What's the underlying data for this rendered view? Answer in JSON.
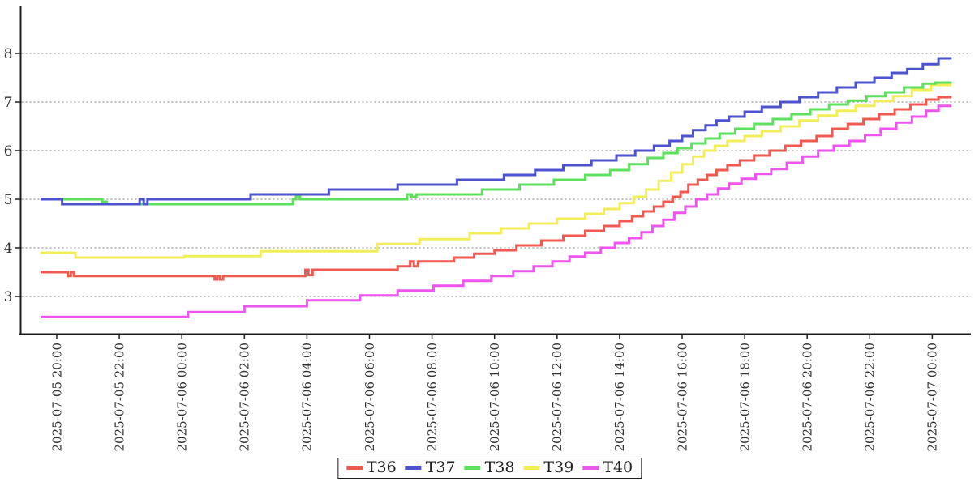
{
  "chart_data": {
    "type": "line",
    "subtype": "step-after",
    "title": "",
    "xlabel": "",
    "ylabel": "",
    "grid": "horizontal-dotted",
    "legend_position": "bottom-center",
    "x_axis": {
      "unit": "datetime, 2-hour ticks, labels rotated 90deg",
      "ticks": [
        {
          "t": 0,
          "label": "2025-07-05 20:00"
        },
        {
          "t": 2,
          "label": "2025-07-05 22:00"
        },
        {
          "t": 4,
          "label": "2025-07-06 00:00"
        },
        {
          "t": 6,
          "label": "2025-07-06 02:00"
        },
        {
          "t": 8,
          "label": "2025-07-06 04:00"
        },
        {
          "t": 10,
          "label": "2025-07-06 06:00"
        },
        {
          "t": 12,
          "label": "2025-07-06 08:00"
        },
        {
          "t": 14,
          "label": "2025-07-06 10:00"
        },
        {
          "t": 16,
          "label": "2025-07-06 12:00"
        },
        {
          "t": 18,
          "label": "2025-07-06 14:00"
        },
        {
          "t": 20,
          "label": "2025-07-06 16:00"
        },
        {
          "t": 22,
          "label": "2025-07-06 18:00"
        },
        {
          "t": 24,
          "label": "2025-07-06 20:00"
        },
        {
          "t": 26,
          "label": "2025-07-06 22:00"
        },
        {
          "t": 28,
          "label": "2025-07-07 00:00"
        }
      ]
    },
    "y_axis": {
      "ticks": [
        3,
        4,
        5,
        6,
        7,
        8
      ],
      "range": [
        2.2,
        8.95
      ]
    },
    "series_start_hour": -0.52,
    "series_end_hour": 28.62,
    "draw_order": [
      "T39",
      "T40",
      "T38",
      "T36",
      "T37"
    ],
    "series": [
      {
        "name": "T36",
        "color": "#f0594f",
        "points": [
          [
            -0.52,
            3.5
          ],
          [
            0.35,
            3.42
          ],
          [
            0.45,
            3.5
          ],
          [
            0.55,
            3.42
          ],
          [
            5.05,
            3.35
          ],
          [
            5.13,
            3.42
          ],
          [
            5.22,
            3.35
          ],
          [
            5.32,
            3.42
          ],
          [
            7.95,
            3.55
          ],
          [
            8.05,
            3.44
          ],
          [
            8.18,
            3.55
          ],
          [
            10.9,
            3.62
          ],
          [
            11.3,
            3.72
          ],
          [
            11.42,
            3.62
          ],
          [
            11.55,
            3.72
          ],
          [
            12.7,
            3.8
          ],
          [
            13.35,
            3.88
          ],
          [
            14.0,
            3.95
          ],
          [
            14.7,
            4.05
          ],
          [
            15.5,
            4.15
          ],
          [
            16.2,
            4.25
          ],
          [
            16.9,
            4.35
          ],
          [
            17.5,
            4.45
          ],
          [
            18.0,
            4.55
          ],
          [
            18.4,
            4.65
          ],
          [
            18.75,
            4.75
          ],
          [
            19.1,
            4.85
          ],
          [
            19.4,
            4.95
          ],
          [
            19.7,
            5.05
          ],
          [
            19.95,
            5.15
          ],
          [
            20.2,
            5.3
          ],
          [
            20.5,
            5.4
          ],
          [
            20.8,
            5.5
          ],
          [
            21.1,
            5.6
          ],
          [
            21.45,
            5.7
          ],
          [
            21.85,
            5.8
          ],
          [
            22.3,
            5.9
          ],
          [
            22.8,
            6.0
          ],
          [
            23.3,
            6.1
          ],
          [
            23.8,
            6.2
          ],
          [
            24.3,
            6.3
          ],
          [
            24.8,
            6.45
          ],
          [
            25.3,
            6.55
          ],
          [
            25.8,
            6.65
          ],
          [
            26.3,
            6.75
          ],
          [
            26.8,
            6.85
          ],
          [
            27.3,
            6.95
          ],
          [
            27.8,
            7.05
          ],
          [
            28.2,
            7.1
          ]
        ]
      },
      {
        "name": "T37",
        "color": "#4d53ce",
        "points": [
          [
            -0.52,
            5.0
          ],
          [
            0.17,
            4.9
          ],
          [
            2.65,
            5.0
          ],
          [
            2.78,
            4.9
          ],
          [
            2.9,
            5.0
          ],
          [
            6.2,
            5.1
          ],
          [
            8.7,
            5.2
          ],
          [
            10.9,
            5.3
          ],
          [
            12.8,
            5.4
          ],
          [
            14.3,
            5.5
          ],
          [
            15.3,
            5.6
          ],
          [
            16.2,
            5.7
          ],
          [
            17.1,
            5.8
          ],
          [
            17.9,
            5.9
          ],
          [
            18.5,
            6.0
          ],
          [
            19.1,
            6.1
          ],
          [
            19.6,
            6.2
          ],
          [
            20.0,
            6.3
          ],
          [
            20.35,
            6.42
          ],
          [
            20.75,
            6.52
          ],
          [
            21.1,
            6.62
          ],
          [
            21.5,
            6.7
          ],
          [
            22.0,
            6.8
          ],
          [
            22.55,
            6.9
          ],
          [
            23.15,
            7.0
          ],
          [
            23.75,
            7.1
          ],
          [
            24.35,
            7.2
          ],
          [
            24.95,
            7.3
          ],
          [
            25.55,
            7.4
          ],
          [
            26.15,
            7.5
          ],
          [
            26.7,
            7.6
          ],
          [
            27.2,
            7.68
          ],
          [
            27.7,
            7.78
          ],
          [
            28.2,
            7.9
          ]
        ]
      },
      {
        "name": "T38",
        "color": "#5de05d",
        "points": [
          [
            -0.52,
            5.0
          ],
          [
            1.45,
            4.95
          ],
          [
            1.6,
            4.9
          ],
          [
            7.55,
            5.0
          ],
          [
            7.65,
            5.05
          ],
          [
            7.78,
            5.0
          ],
          [
            11.2,
            5.1
          ],
          [
            11.35,
            5.05
          ],
          [
            11.5,
            5.1
          ],
          [
            13.6,
            5.2
          ],
          [
            14.8,
            5.3
          ],
          [
            15.9,
            5.4
          ],
          [
            16.9,
            5.5
          ],
          [
            17.7,
            5.6
          ],
          [
            18.3,
            5.72
          ],
          [
            18.9,
            5.85
          ],
          [
            19.4,
            5.95
          ],
          [
            19.85,
            6.05
          ],
          [
            20.3,
            6.15
          ],
          [
            20.75,
            6.25
          ],
          [
            21.2,
            6.35
          ],
          [
            21.7,
            6.45
          ],
          [
            22.3,
            6.55
          ],
          [
            22.9,
            6.65
          ],
          [
            23.5,
            6.75
          ],
          [
            24.1,
            6.85
          ],
          [
            24.7,
            6.95
          ],
          [
            25.3,
            7.03
          ],
          [
            25.9,
            7.12
          ],
          [
            26.5,
            7.2
          ],
          [
            27.1,
            7.3
          ],
          [
            27.7,
            7.38
          ],
          [
            28.1,
            7.4
          ]
        ]
      },
      {
        "name": "T39",
        "color": "#f1ee5a",
        "points": [
          [
            -0.52,
            3.9
          ],
          [
            0.6,
            3.8
          ],
          [
            4.07,
            3.83
          ],
          [
            6.52,
            3.93
          ],
          [
            10.25,
            4.08
          ],
          [
            11.6,
            4.18
          ],
          [
            13.2,
            4.3
          ],
          [
            14.2,
            4.4
          ],
          [
            15.1,
            4.5
          ],
          [
            16.0,
            4.6
          ],
          [
            16.9,
            4.7
          ],
          [
            17.5,
            4.8
          ],
          [
            18.0,
            4.92
          ],
          [
            18.45,
            5.05
          ],
          [
            18.85,
            5.2
          ],
          [
            19.25,
            5.38
          ],
          [
            19.65,
            5.55
          ],
          [
            20.0,
            5.72
          ],
          [
            20.35,
            5.88
          ],
          [
            20.7,
            6.0
          ],
          [
            21.05,
            6.1
          ],
          [
            21.45,
            6.2
          ],
          [
            22.0,
            6.3
          ],
          [
            22.55,
            6.4
          ],
          [
            23.15,
            6.5
          ],
          [
            23.75,
            6.62
          ],
          [
            24.35,
            6.72
          ],
          [
            24.95,
            6.82
          ],
          [
            25.55,
            6.92
          ],
          [
            26.15,
            7.02
          ],
          [
            26.75,
            7.12
          ],
          [
            27.35,
            7.25
          ],
          [
            27.95,
            7.35
          ]
        ]
      },
      {
        "name": "T40",
        "color": "#ee55ee",
        "points": [
          [
            -0.52,
            2.58
          ],
          [
            4.2,
            2.68
          ],
          [
            6.0,
            2.8
          ],
          [
            8.0,
            2.92
          ],
          [
            9.7,
            3.02
          ],
          [
            10.9,
            3.12
          ],
          [
            12.05,
            3.22
          ],
          [
            13.0,
            3.32
          ],
          [
            13.9,
            3.42
          ],
          [
            14.6,
            3.52
          ],
          [
            15.25,
            3.62
          ],
          [
            15.85,
            3.72
          ],
          [
            16.4,
            3.82
          ],
          [
            16.9,
            3.9
          ],
          [
            17.4,
            4.0
          ],
          [
            17.85,
            4.1
          ],
          [
            18.3,
            4.2
          ],
          [
            18.7,
            4.32
          ],
          [
            19.05,
            4.45
          ],
          [
            19.4,
            4.58
          ],
          [
            19.75,
            4.72
          ],
          [
            20.1,
            4.85
          ],
          [
            20.45,
            5.0
          ],
          [
            20.8,
            5.1
          ],
          [
            21.15,
            5.22
          ],
          [
            21.5,
            5.32
          ],
          [
            21.9,
            5.42
          ],
          [
            22.35,
            5.52
          ],
          [
            22.85,
            5.62
          ],
          [
            23.35,
            5.75
          ],
          [
            23.85,
            5.88
          ],
          [
            24.35,
            6.0
          ],
          [
            24.85,
            6.1
          ],
          [
            25.35,
            6.2
          ],
          [
            25.85,
            6.32
          ],
          [
            26.35,
            6.45
          ],
          [
            26.85,
            6.58
          ],
          [
            27.35,
            6.7
          ],
          [
            27.8,
            6.82
          ],
          [
            28.2,
            6.92
          ]
        ]
      }
    ]
  },
  "colors": {
    "background": "#ffffff",
    "axis": "#1d1d1d",
    "grid": "#858585",
    "tick_text": "#333333",
    "legend_border": "#1d1d1d",
    "legend_text": "#222222"
  }
}
